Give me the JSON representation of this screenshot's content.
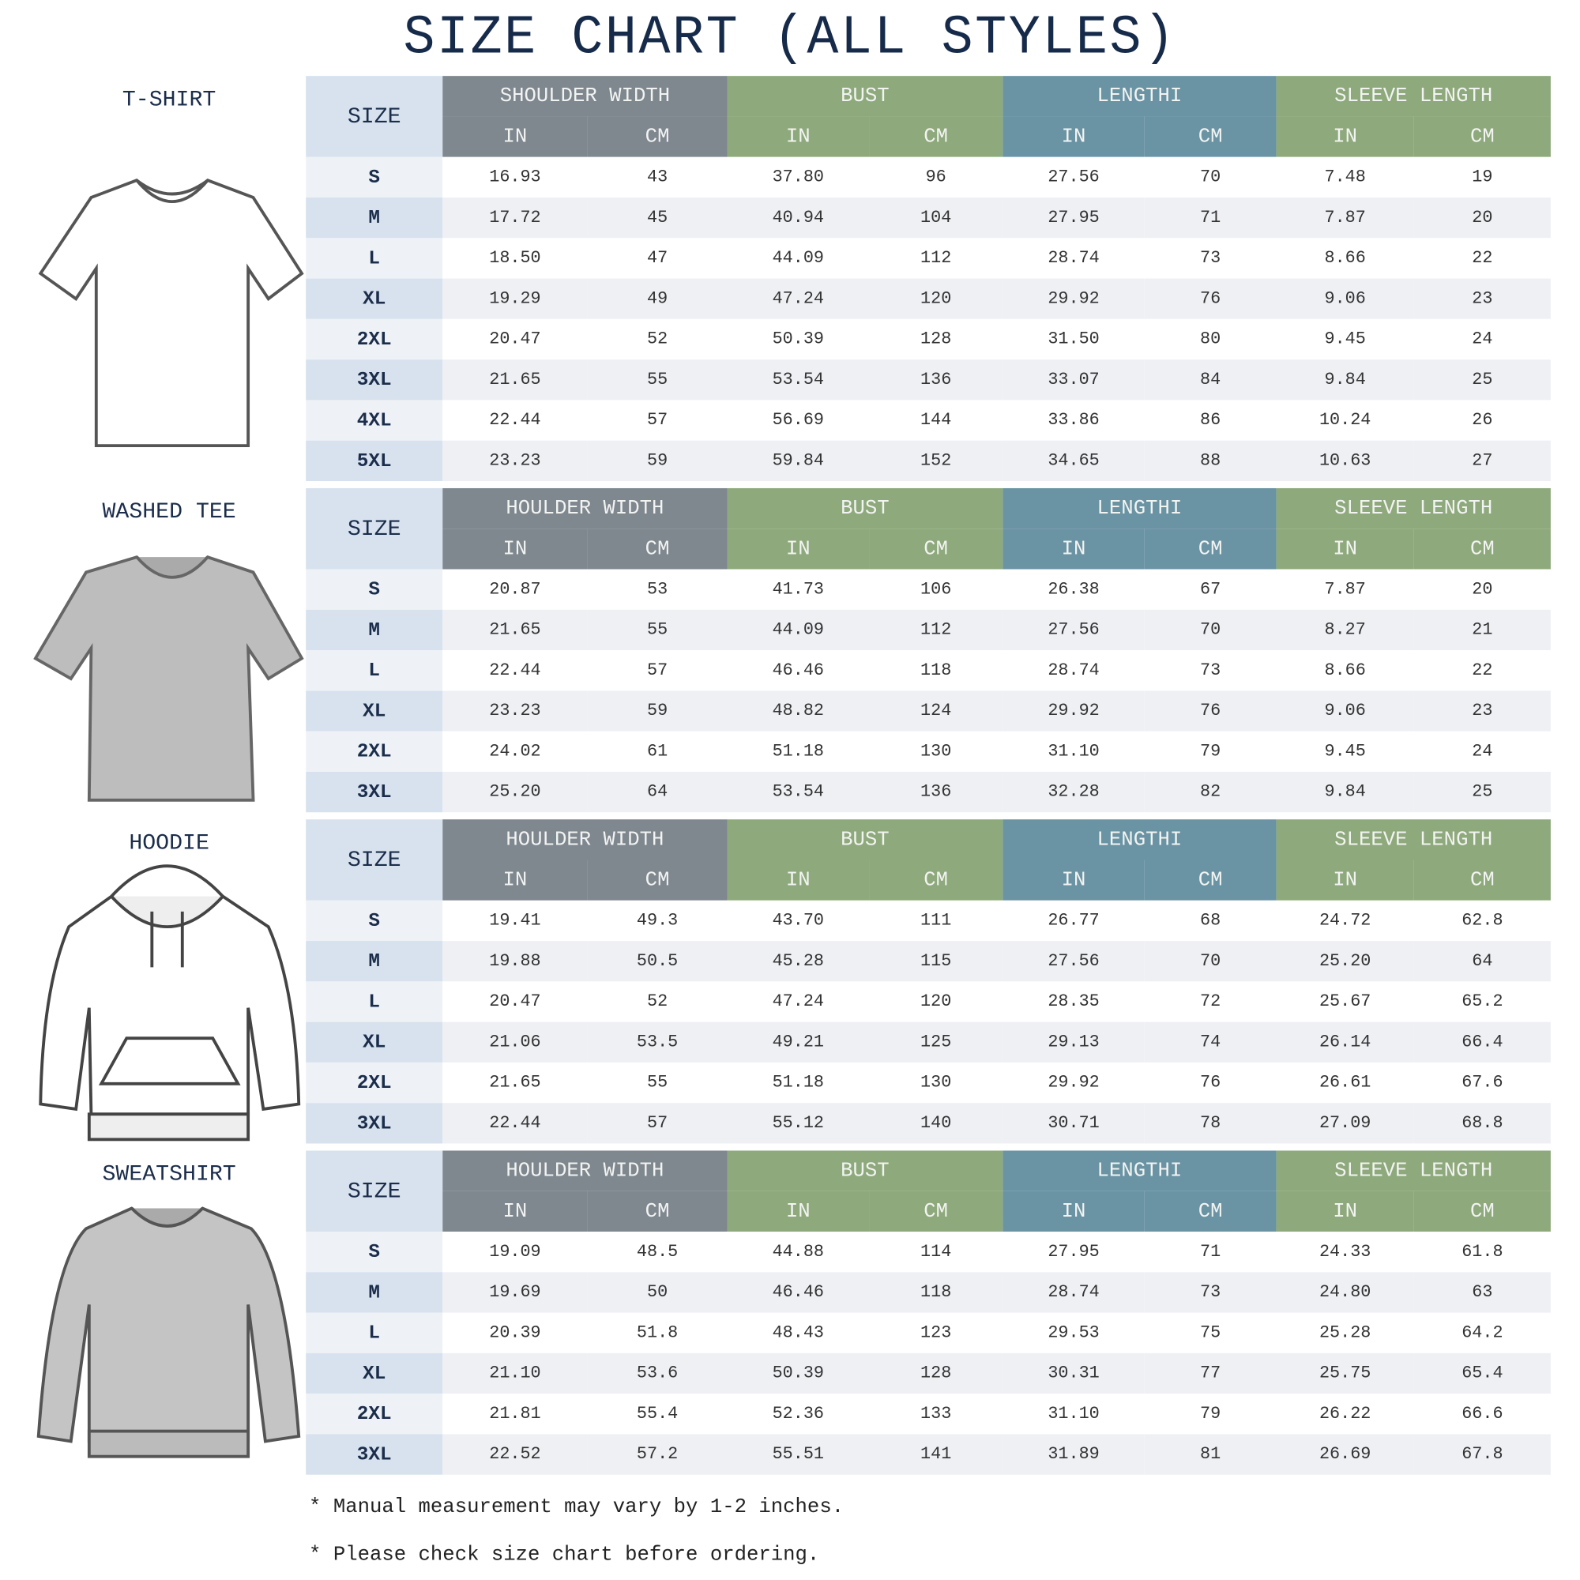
{
  "title": "SIZE CHART (ALL STYLES)",
  "colors": {
    "shoulder": "#7f878f",
    "bust": "#8ea97b",
    "length": "#6a93a4",
    "sleeve": "#8ea97b",
    "size_col": "#d7e2ee"
  },
  "sections": [
    {
      "label": "T-SHIRT",
      "icon": "tshirt-icon",
      "size_header": "SIZE",
      "groups": [
        "SHOULDER WIDTH",
        "BUST",
        "LENGTHI",
        "SLEEVE LENGTH"
      ],
      "units": [
        "IN",
        "CM",
        "IN",
        "CM",
        "IN",
        "CM",
        "IN",
        "CM"
      ],
      "rows": [
        [
          "S",
          "16.93",
          "43",
          "37.80",
          "96",
          "27.56",
          "70",
          "7.48",
          "19"
        ],
        [
          "M",
          "17.72",
          "45",
          "40.94",
          "104",
          "27.95",
          "71",
          "7.87",
          "20"
        ],
        [
          "L",
          "18.50",
          "47",
          "44.09",
          "112",
          "28.74",
          "73",
          "8.66",
          "22"
        ],
        [
          "XL",
          "19.29",
          "49",
          "47.24",
          "120",
          "29.92",
          "76",
          "9.06",
          "23"
        ],
        [
          "2XL",
          "20.47",
          "52",
          "50.39",
          "128",
          "31.50",
          "80",
          "9.45",
          "24"
        ],
        [
          "3XL",
          "21.65",
          "55",
          "53.54",
          "136",
          "33.07",
          "84",
          "9.84",
          "25"
        ],
        [
          "4XL",
          "22.44",
          "57",
          "56.69",
          "144",
          "33.86",
          "86",
          "10.24",
          "26"
        ],
        [
          "5XL",
          "23.23",
          "59",
          "59.84",
          "152",
          "34.65",
          "88",
          "10.63",
          "27"
        ]
      ]
    },
    {
      "label": "WASHED TEE",
      "icon": "washed-tee-icon",
      "size_header": "SIZE",
      "groups": [
        "HOULDER WIDTH",
        "BUST",
        "LENGTHI",
        "SLEEVE LENGTH"
      ],
      "units": [
        "IN",
        "CM",
        "IN",
        "CM",
        "IN",
        "CM",
        "IN",
        "CM"
      ],
      "rows": [
        [
          "S",
          "20.87",
          "53",
          "41.73",
          "106",
          "26.38",
          "67",
          "7.87",
          "20"
        ],
        [
          "M",
          "21.65",
          "55",
          "44.09",
          "112",
          "27.56",
          "70",
          "8.27",
          "21"
        ],
        [
          "L",
          "22.44",
          "57",
          "46.46",
          "118",
          "28.74",
          "73",
          "8.66",
          "22"
        ],
        [
          "XL",
          "23.23",
          "59",
          "48.82",
          "124",
          "29.92",
          "76",
          "9.06",
          "23"
        ],
        [
          "2XL",
          "24.02",
          "61",
          "51.18",
          "130",
          "31.10",
          "79",
          "9.45",
          "24"
        ],
        [
          "3XL",
          "25.20",
          "64",
          "53.54",
          "136",
          "32.28",
          "82",
          "9.84",
          "25"
        ]
      ]
    },
    {
      "label": "HOODIE",
      "icon": "hoodie-icon",
      "size_header": "SIZE",
      "groups": [
        "HOULDER WIDTH",
        "BUST",
        "LENGTHI",
        "SLEEVE LENGTH"
      ],
      "units": [
        "IN",
        "CM",
        "IN",
        "CM",
        "IN",
        "CM",
        "IN",
        "CM"
      ],
      "rows": [
        [
          "S",
          "19.41",
          "49.3",
          "43.70",
          "111",
          "26.77",
          "68",
          "24.72",
          "62.8"
        ],
        [
          "M",
          "19.88",
          "50.5",
          "45.28",
          "115",
          "27.56",
          "70",
          "25.20",
          "64"
        ],
        [
          "L",
          "20.47",
          "52",
          "47.24",
          "120",
          "28.35",
          "72",
          "25.67",
          "65.2"
        ],
        [
          "XL",
          "21.06",
          "53.5",
          "49.21",
          "125",
          "29.13",
          "74",
          "26.14",
          "66.4"
        ],
        [
          "2XL",
          "21.65",
          "55",
          "51.18",
          "130",
          "29.92",
          "76",
          "26.61",
          "67.6"
        ],
        [
          "3XL",
          "22.44",
          "57",
          "55.12",
          "140",
          "30.71",
          "78",
          "27.09",
          "68.8"
        ]
      ]
    },
    {
      "label": "SWEATSHIRT",
      "icon": "sweatshirt-icon",
      "size_header": "SIZE",
      "groups": [
        "HOULDER WIDTH",
        "BUST",
        "LENGTHI",
        "SLEEVE LENGTH"
      ],
      "units": [
        "IN",
        "CM",
        "IN",
        "CM",
        "IN",
        "CM",
        "IN",
        "CM"
      ],
      "rows": [
        [
          "S",
          "19.09",
          "48.5",
          "44.88",
          "114",
          "27.95",
          "71",
          "24.33",
          "61.8"
        ],
        [
          "M",
          "19.69",
          "50",
          "46.46",
          "118",
          "28.74",
          "73",
          "24.80",
          "63"
        ],
        [
          "L",
          "20.39",
          "51.8",
          "48.43",
          "123",
          "29.53",
          "75",
          "25.28",
          "64.2"
        ],
        [
          "XL",
          "21.10",
          "53.6",
          "50.39",
          "128",
          "30.31",
          "77",
          "25.75",
          "65.4"
        ],
        [
          "2XL",
          "21.81",
          "55.4",
          "52.36",
          "133",
          "31.10",
          "79",
          "26.22",
          "66.6"
        ],
        [
          "3XL",
          "22.52",
          "57.2",
          "55.51",
          "141",
          "31.89",
          "81",
          "26.69",
          "67.8"
        ]
      ]
    }
  ],
  "notes": [
    "* Manual measurement may vary by 1-2 inches.",
    "* Please check size chart before ordering."
  ]
}
